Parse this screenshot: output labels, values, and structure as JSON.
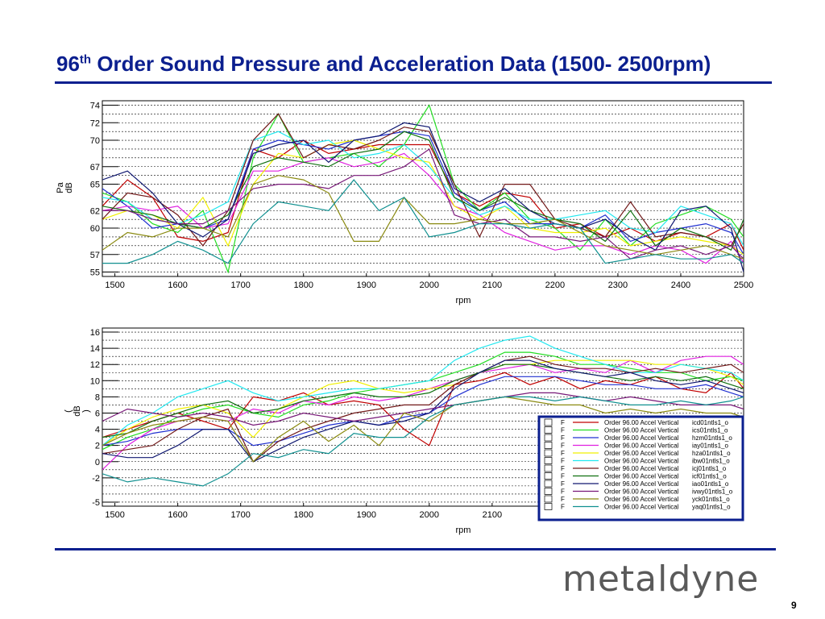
{
  "slide": {
    "title_main": "96",
    "title_sup": "th",
    "title_rest": " Order Sound Pressure and Acceleration Data (1500- 2500rpm)",
    "logo": "metaldyne",
    "page_number": "9"
  },
  "colors": {
    "title": "#0b1f8f",
    "rule": "#0b1f8f",
    "legend_border": "#0b1f8f"
  },
  "legend": {
    "rows": [
      {
        "flag": "F",
        "label": "Order 96.00 Accel Vertical",
        "name": "icd01ntls1_o",
        "color": "#c00000"
      },
      {
        "flag": "F",
        "label": "Order 96.00 Accel Vertical",
        "name": "ics01ntls1_o",
        "color": "#22dd22"
      },
      {
        "flag": "F",
        "label": "Order 96.00 Accel Vertical",
        "name": "hzm01ntls1_o",
        "color": "#2030d0"
      },
      {
        "flag": "F",
        "label": "Order 96.00 Accel Vertical",
        "name": "iay01ntls1_o",
        "color": "#e020e0"
      },
      {
        "flag": "F",
        "label": "Order 96.00 Accel Vertical",
        "name": "hza01ntls1_o",
        "color": "#f0f000"
      },
      {
        "flag": "F",
        "label": "Order 96.00 Accel Vertical",
        "name": "ibw01ntls1_o",
        "color": "#22e8f0"
      },
      {
        "flag": "F",
        "label": "Order 96.00 Accel Vertical",
        "name": "icj01ntls1_o",
        "color": "#701818"
      },
      {
        "flag": "F",
        "label": "Order 96.00 Accel Vertical",
        "name": "icf01ntls1_o",
        "color": "#107010"
      },
      {
        "flag": "F",
        "label": "Order 96.00 Accel Vertical",
        "name": "iao01ntls1_o",
        "color": "#101870"
      },
      {
        "flag": "F",
        "label": "Order 96.00 Accel Vertical",
        "name": "ivwy01ntls1_o",
        "color": "#781878"
      },
      {
        "flag": "F",
        "label": "Order 96.00 Accel Vertical",
        "name": "yck01ntls1_o",
        "color": "#8a8a10"
      },
      {
        "flag": "F",
        "label": "Order 96.00 Accel Vertical",
        "name": "yaq01ntls1_o",
        "color": "#109090"
      }
    ]
  },
  "chart_data": [
    {
      "type": "line",
      "xlabel": "rpm",
      "ylabel": [
        "Pa",
        "dB"
      ],
      "xlim": [
        1480,
        2500
      ],
      "ylim": [
        54.5,
        74.5
      ],
      "xticks": [
        1500,
        1600,
        1700,
        1800,
        1900,
        2000,
        2100,
        2200,
        2300,
        2400,
        2500
      ],
      "yticks": [
        55,
        57,
        60,
        62,
        65,
        67,
        70,
        72,
        74
      ],
      "x": [
        1480,
        1520,
        1560,
        1600,
        1640,
        1680,
        1720,
        1760,
        1800,
        1840,
        1880,
        1920,
        1960,
        2000,
        2040,
        2080,
        2120,
        2160,
        2200,
        2240,
        2280,
        2320,
        2360,
        2400,
        2440,
        2480,
        2500
      ],
      "series": [
        {
          "color": "#c00000",
          "values": [
            62.5,
            65.5,
            63.5,
            59.0,
            58.5,
            59.5,
            69.0,
            68.0,
            70.0,
            68.5,
            69.0,
            69.5,
            69.5,
            69.5,
            64.0,
            62.5,
            64.0,
            63.5,
            60.0,
            60.5,
            59.0,
            60.0,
            58.5,
            59.5,
            59.0,
            60.5,
            57.5
          ]
        },
        {
          "color": "#22dd22",
          "values": [
            64.0,
            63.0,
            60.5,
            59.5,
            62.0,
            55.0,
            68.0,
            73.0,
            67.5,
            68.0,
            68.5,
            67.0,
            69.5,
            74.0,
            65.0,
            62.0,
            64.0,
            61.0,
            60.0,
            57.5,
            61.0,
            58.0,
            60.5,
            61.5,
            62.5,
            61.0,
            59.0
          ]
        },
        {
          "color": "#2030d0",
          "values": [
            64.5,
            62.5,
            60.0,
            60.5,
            60.0,
            61.0,
            69.0,
            70.0,
            69.5,
            69.0,
            70.0,
            70.5,
            71.0,
            70.5,
            64.0,
            62.0,
            63.0,
            60.5,
            60.5,
            60.0,
            61.5,
            58.5,
            59.5,
            60.0,
            60.5,
            59.5,
            57.0
          ]
        },
        {
          "color": "#e020e0",
          "values": [
            62.0,
            62.5,
            62.0,
            62.5,
            60.0,
            60.5,
            66.5,
            66.5,
            67.5,
            68.0,
            67.0,
            67.5,
            68.5,
            66.0,
            62.5,
            61.5,
            59.5,
            58.5,
            57.5,
            58.0,
            58.0,
            57.0,
            58.0,
            57.5,
            56.0,
            58.5,
            56.0
          ]
        },
        {
          "color": "#f0f000",
          "values": [
            61.0,
            62.0,
            61.5,
            60.0,
            63.5,
            58.0,
            65.0,
            68.5,
            68.0,
            69.5,
            70.0,
            69.0,
            68.0,
            67.5,
            62.5,
            61.0,
            62.5,
            60.0,
            59.5,
            59.5,
            60.0,
            58.0,
            58.5,
            59.0,
            58.5,
            58.0,
            57.0
          ]
        },
        {
          "color": "#22e8f0",
          "values": [
            63.5,
            63.0,
            61.0,
            60.5,
            61.5,
            63.0,
            70.0,
            71.0,
            69.5,
            70.0,
            68.0,
            68.5,
            69.5,
            67.0,
            63.5,
            61.5,
            62.5,
            61.0,
            61.0,
            61.5,
            62.0,
            60.0,
            59.5,
            62.5,
            61.5,
            60.5,
            58.0
          ]
        },
        {
          "color": "#701818",
          "values": [
            61.0,
            64.0,
            63.5,
            61.5,
            58.0,
            62.0,
            70.0,
            73.0,
            68.0,
            69.5,
            69.0,
            70.0,
            71.5,
            71.0,
            65.0,
            59.0,
            65.0,
            65.0,
            61.0,
            60.0,
            59.0,
            63.0,
            59.0,
            59.5,
            59.0,
            58.0,
            60.5
          ]
        },
        {
          "color": "#107010",
          "values": [
            62.5,
            62.0,
            61.5,
            60.5,
            60.0,
            61.5,
            67.0,
            68.0,
            67.5,
            67.0,
            68.5,
            69.0,
            71.0,
            70.0,
            63.5,
            62.0,
            63.5,
            62.0,
            61.0,
            60.5,
            58.5,
            62.0,
            58.0,
            60.0,
            59.0,
            57.5,
            61.0
          ]
        },
        {
          "color": "#101870",
          "values": [
            65.5,
            66.5,
            64.0,
            60.5,
            59.0,
            61.0,
            68.5,
            69.5,
            70.0,
            67.5,
            70.0,
            70.5,
            72.0,
            71.5,
            64.5,
            63.0,
            64.5,
            62.0,
            60.5,
            60.0,
            61.0,
            59.0,
            57.5,
            62.0,
            62.5,
            60.0,
            55.0
          ]
        },
        {
          "color": "#781878",
          "values": [
            62.0,
            62.0,
            61.0,
            60.5,
            60.5,
            62.0,
            64.5,
            65.0,
            65.0,
            64.5,
            66.0,
            66.0,
            67.0,
            69.0,
            61.5,
            60.5,
            61.0,
            59.0,
            59.0,
            58.5,
            59.0,
            56.5,
            57.5,
            58.0,
            57.0,
            58.0,
            56.5
          ]
        },
        {
          "color": "#8a8a10",
          "values": [
            57.5,
            59.5,
            59.0,
            60.0,
            60.0,
            59.0,
            65.0,
            66.0,
            65.5,
            64.0,
            58.5,
            58.5,
            63.5,
            60.5,
            60.5,
            61.0,
            60.5,
            60.5,
            61.0,
            59.5,
            58.0,
            57.5,
            57.0,
            57.5,
            58.0,
            57.0,
            56.5
          ]
        },
        {
          "color": "#109090",
          "values": [
            56.0,
            56.0,
            57.0,
            58.5,
            57.5,
            56.0,
            60.5,
            63.0,
            62.5,
            62.0,
            65.5,
            62.0,
            63.5,
            59.0,
            59.5,
            60.5,
            60.5,
            60.0,
            60.5,
            60.0,
            56.0,
            56.5,
            57.0,
            56.5,
            56.5,
            57.0,
            56.0
          ]
        }
      ]
    },
    {
      "type": "line",
      "xlabel": "rpm",
      "ylabel": [
        "(",
        "dB",
        ")"
      ],
      "xlim": [
        1480,
        2500
      ],
      "ylim": [
        -5.5,
        16.5
      ],
      "xticks": [
        1500,
        1600,
        1700,
        1800,
        1900,
        2000,
        2100
      ],
      "yticks": [
        -5,
        -2,
        0,
        2,
        4,
        6,
        8,
        10,
        12,
        14,
        16
      ],
      "x": [
        1480,
        1520,
        1560,
        1600,
        1640,
        1680,
        1720,
        1760,
        1800,
        1840,
        1880,
        1920,
        1960,
        2000,
        2040,
        2080,
        2120,
        2160,
        2200,
        2240,
        2280,
        2320,
        2360,
        2400,
        2440,
        2480,
        2500
      ],
      "series": [
        {
          "color": "#c00000",
          "values": [
            3.0,
            4.0,
            5.0,
            6.0,
            5.0,
            4.0,
            8.0,
            7.5,
            8.5,
            7.0,
            7.5,
            7.0,
            4.0,
            2.0,
            9.5,
            10.0,
            11.0,
            9.5,
            10.5,
            9.0,
            10.0,
            9.5,
            10.5,
            9.0,
            8.5,
            11.0,
            9.0
          ]
        },
        {
          "color": "#22dd22",
          "values": [
            1.5,
            3.0,
            4.0,
            5.5,
            6.5,
            7.0,
            6.0,
            5.5,
            7.0,
            7.5,
            8.5,
            9.0,
            9.5,
            10.0,
            11.0,
            12.0,
            13.5,
            13.5,
            13.0,
            12.0,
            12.0,
            11.5,
            11.0,
            11.0,
            10.0,
            10.5,
            10.0
          ]
        },
        {
          "color": "#2030d0",
          "values": [
            2.0,
            2.5,
            3.5,
            4.0,
            4.0,
            4.0,
            2.0,
            2.5,
            3.5,
            4.5,
            5.0,
            4.5,
            5.5,
            6.0,
            8.0,
            9.5,
            10.5,
            10.5,
            10.5,
            10.0,
            9.5,
            9.5,
            9.0,
            9.0,
            9.5,
            8.5,
            8.0
          ]
        },
        {
          "color": "#e020e0",
          "values": [
            -1.0,
            2.0,
            4.0,
            5.0,
            5.5,
            5.0,
            6.5,
            6.0,
            7.5,
            7.0,
            8.0,
            7.5,
            8.0,
            9.0,
            10.0,
            11.0,
            11.5,
            12.0,
            11.0,
            11.5,
            11.0,
            12.5,
            11.0,
            12.5,
            13.0,
            13.0,
            12.0
          ]
        },
        {
          "color": "#f0f000",
          "values": [
            2.0,
            4.0,
            5.5,
            6.5,
            7.0,
            6.0,
            3.0,
            6.5,
            8.0,
            9.5,
            10.0,
            9.0,
            8.5,
            9.0,
            9.5,
            11.0,
            12.0,
            12.0,
            12.5,
            12.5,
            12.5,
            12.5,
            12.0,
            12.0,
            11.5,
            10.5,
            9.5
          ]
        },
        {
          "color": "#22e8f0",
          "values": [
            2.0,
            4.5,
            6.0,
            8.0,
            9.0,
            10.0,
            8.5,
            7.5,
            8.0,
            8.5,
            9.0,
            9.0,
            9.5,
            10.0,
            12.5,
            14.0,
            15.0,
            15.5,
            14.0,
            13.0,
            12.0,
            11.0,
            11.0,
            12.0,
            11.5,
            11.0,
            10.0
          ]
        },
        {
          "color": "#701818",
          "values": [
            1.0,
            1.5,
            2.0,
            4.0,
            5.5,
            6.5,
            0.0,
            2.5,
            4.0,
            5.0,
            6.0,
            6.5,
            7.0,
            7.0,
            9.5,
            11.0,
            12.5,
            13.0,
            12.0,
            11.5,
            11.5,
            11.0,
            11.5,
            11.0,
            11.5,
            12.0,
            11.0
          ]
        },
        {
          "color": "#107010",
          "values": [
            3.0,
            3.5,
            5.0,
            6.0,
            7.0,
            7.5,
            6.0,
            6.5,
            7.5,
            8.0,
            8.5,
            8.0,
            8.0,
            8.5,
            10.0,
            11.0,
            12.0,
            12.0,
            11.5,
            11.0,
            10.5,
            10.0,
            10.5,
            10.0,
            10.5,
            9.5,
            9.0
          ]
        },
        {
          "color": "#101870",
          "values": [
            1.0,
            0.5,
            0.5,
            2.0,
            4.0,
            4.0,
            0.0,
            1.5,
            3.0,
            4.0,
            5.0,
            4.5,
            5.0,
            6.0,
            9.0,
            11.0,
            12.5,
            12.5,
            11.5,
            11.0,
            10.5,
            11.0,
            10.0,
            9.5,
            10.0,
            9.0,
            8.5
          ]
        },
        {
          "color": "#781878",
          "values": [
            5.0,
            6.5,
            6.0,
            5.5,
            6.0,
            5.5,
            4.5,
            5.0,
            6.0,
            5.5,
            5.0,
            5.5,
            6.0,
            6.5,
            7.0,
            7.5,
            8.0,
            8.5,
            8.5,
            8.0,
            7.5,
            8.0,
            7.5,
            7.0,
            7.0,
            7.0,
            6.5
          ]
        },
        {
          "color": "#8a8a10",
          "values": [
            2.0,
            3.5,
            4.5,
            5.0,
            5.5,
            5.0,
            0.0,
            3.0,
            5.0,
            2.5,
            4.5,
            2.0,
            6.0,
            5.0,
            7.0,
            7.5,
            8.0,
            7.5,
            7.0,
            7.0,
            6.0,
            6.5,
            6.0,
            6.5,
            6.0,
            6.0,
            5.5
          ]
        },
        {
          "color": "#109090",
          "values": [
            -1.5,
            -2.5,
            -2.0,
            -2.5,
            -3.0,
            -1.5,
            1.0,
            0.5,
            1.5,
            1.0,
            3.5,
            3.0,
            3.0,
            5.5,
            7.0,
            7.5,
            8.0,
            8.0,
            7.5,
            8.0,
            7.5,
            7.0,
            7.0,
            7.5,
            7.0,
            7.5,
            8.0
          ]
        }
      ]
    }
  ]
}
